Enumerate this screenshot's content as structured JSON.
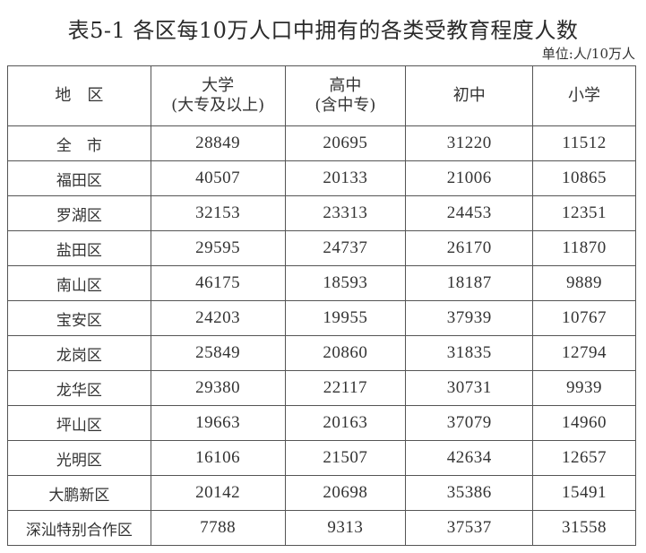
{
  "title": "表5-1 各区每10万人口中拥有的各类受教育程度人数",
  "unit": "单位:人/10万人",
  "table": {
    "headers": [
      {
        "line1": "地　区",
        "line2": ""
      },
      {
        "line1": "大学",
        "line2": "(大专及以上)"
      },
      {
        "line1": "高中",
        "line2": "(含中专)"
      },
      {
        "line1": "初中",
        "line2": ""
      },
      {
        "line1": "小学",
        "line2": ""
      }
    ],
    "rows": [
      [
        "全　市",
        "28849",
        "20695",
        "31220",
        "11512"
      ],
      [
        "福田区",
        "40507",
        "20133",
        "21006",
        "10865"
      ],
      [
        "罗湖区",
        "32153",
        "23313",
        "24453",
        "12351"
      ],
      [
        "盐田区",
        "29595",
        "24737",
        "26170",
        "11870"
      ],
      [
        "南山区",
        "46175",
        "18593",
        "18187",
        "9889"
      ],
      [
        "宝安区",
        "24203",
        "19955",
        "37939",
        "10767"
      ],
      [
        "龙岗区",
        "25849",
        "20860",
        "31835",
        "12794"
      ],
      [
        "龙华区",
        "29380",
        "22117",
        "30731",
        "9939"
      ],
      [
        "坪山区",
        "19663",
        "20163",
        "37079",
        "14960"
      ],
      [
        "光明区",
        "16106",
        "21507",
        "42634",
        "12657"
      ],
      [
        "大鹏新区",
        "20142",
        "20698",
        "35386",
        "15491"
      ],
      [
        "深汕特别合作区",
        "7788",
        "9313",
        "37537",
        "31558"
      ]
    ]
  }
}
